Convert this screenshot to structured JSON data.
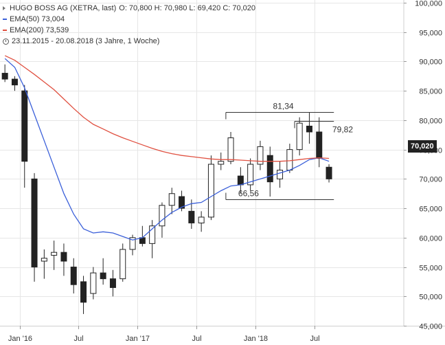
{
  "legend": {
    "title": "HUGO BOSS AG (XETRA, last)",
    "ohlc": "O: 70,800  H: 70,980  L: 69,420  C: 70,020",
    "ema50": "EMA(50)  73,004",
    "ema200": "EMA(200)  73,539",
    "period": "23.11.2015 - 20.08.2018   (3 Jahre, 1 Woche)"
  },
  "colors": {
    "ema50": "#3a5fd9",
    "ema200": "#e05040",
    "candle": "#222222",
    "grid": "#e6e6e6"
  },
  "last_price_badge": "70,020",
  "annotations": {
    "high": "81,34",
    "mid": "79,82",
    "low": "66,56"
  },
  "chart_data": {
    "type": "candlestick",
    "title": "HUGO BOSS AG (XETRA, last)",
    "x_tick_labels": [
      "Jan '16",
      "Jul",
      "Jan '17",
      "Jul",
      "Jan '18",
      "Jul"
    ],
    "y_tick_labels": [
      "100,000",
      "95,000",
      "90,000",
      "85,000",
      "80,000",
      "75,000",
      "70,000",
      "65,000",
      "60,000",
      "55,000",
      "50,000",
      "45,000"
    ],
    "ylim": [
      45,
      100
    ],
    "last_close": 70.02,
    "levels": [
      {
        "label": "81,34",
        "value": 81.34,
        "from": "2017-10",
        "to": "2018-08"
      },
      {
        "label": "79,82",
        "value": 79.82,
        "from": "2018-05",
        "to": "2018-08"
      },
      {
        "label": "66,56",
        "value": 66.56,
        "from": "2017-10",
        "to": "2018-08"
      }
    ],
    "series": [
      {
        "name": "EMA(50)",
        "last": 73.004,
        "points": [
          [
            "2015-11",
            90.5
          ],
          [
            "2015-12",
            89.0
          ],
          [
            "2016-01",
            85.5
          ],
          [
            "2016-02",
            81.0
          ],
          [
            "2016-03",
            76.5
          ],
          [
            "2016-04",
            72.0
          ],
          [
            "2016-05",
            67.5
          ],
          [
            "2016-06",
            64.0
          ],
          [
            "2016-07",
            61.5
          ],
          [
            "2016-08",
            60.8
          ],
          [
            "2016-09",
            61.0
          ],
          [
            "2016-10",
            60.8
          ],
          [
            "2016-11",
            60.2
          ],
          [
            "2016-12",
            59.6
          ],
          [
            "2017-01",
            60.0
          ],
          [
            "2017-02",
            61.5
          ],
          [
            "2017-03",
            63.0
          ],
          [
            "2017-04",
            64.3
          ],
          [
            "2017-05",
            65.2
          ],
          [
            "2017-06",
            65.8
          ],
          [
            "2017-07",
            66.0
          ],
          [
            "2017-08",
            67.0
          ],
          [
            "2017-09",
            68.0
          ],
          [
            "2017-10",
            68.8
          ],
          [
            "2017-11",
            69.0
          ],
          [
            "2017-12",
            69.5
          ],
          [
            "2018-01",
            70.0
          ],
          [
            "2018-02",
            70.5
          ],
          [
            "2018-03",
            71.0
          ],
          [
            "2018-04",
            71.5
          ],
          [
            "2018-05",
            72.3
          ],
          [
            "2018-06",
            73.3
          ],
          [
            "2018-07",
            73.6
          ],
          [
            "2018-08",
            73.0
          ]
        ]
      },
      {
        "name": "EMA(200)",
        "last": 73.539,
        "points": [
          [
            "2015-11",
            91.0
          ],
          [
            "2015-12",
            90.2
          ],
          [
            "2016-01",
            89.0
          ],
          [
            "2016-02",
            87.8
          ],
          [
            "2016-03",
            86.5
          ],
          [
            "2016-04",
            85.2
          ],
          [
            "2016-05",
            83.6
          ],
          [
            "2016-06",
            82.0
          ],
          [
            "2016-07",
            80.5
          ],
          [
            "2016-08",
            79.3
          ],
          [
            "2016-09",
            78.5
          ],
          [
            "2016-10",
            77.7
          ],
          [
            "2016-11",
            77.0
          ],
          [
            "2016-12",
            76.4
          ],
          [
            "2017-01",
            75.8
          ],
          [
            "2017-02",
            75.2
          ],
          [
            "2017-03",
            74.7
          ],
          [
            "2017-04",
            74.3
          ],
          [
            "2017-05",
            74.0
          ],
          [
            "2017-06",
            73.8
          ],
          [
            "2017-07",
            73.6
          ],
          [
            "2017-08",
            73.4
          ],
          [
            "2017-09",
            73.3
          ],
          [
            "2017-10",
            73.3
          ],
          [
            "2017-11",
            73.2
          ],
          [
            "2017-12",
            73.1
          ],
          [
            "2018-01",
            73.0
          ],
          [
            "2018-02",
            73.0
          ],
          [
            "2018-03",
            73.0
          ],
          [
            "2018-04",
            73.1
          ],
          [
            "2018-05",
            73.3
          ],
          [
            "2018-06",
            73.5
          ],
          [
            "2018-07",
            73.6
          ],
          [
            "2018-08",
            73.5
          ]
        ]
      }
    ],
    "candles": [
      [
        "2015-11",
        88.0,
        89.5,
        86.5,
        87.0
      ],
      [
        "2015-12",
        87.0,
        87.5,
        85.0,
        86.0
      ],
      [
        "2016-01",
        85.0,
        86.0,
        68.5,
        73.0
      ],
      [
        "2016-02",
        70.0,
        71.0,
        52.5,
        55.0
      ],
      [
        "2016-03",
        56.0,
        58.0,
        53.0,
        56.5
      ],
      [
        "2016-04",
        57.0,
        59.5,
        54.5,
        57.5
      ],
      [
        "2016-05",
        57.5,
        59.0,
        53.5,
        56.0
      ],
      [
        "2016-06",
        55.0,
        56.5,
        50.5,
        52.0
      ],
      [
        "2016-07",
        52.5,
        53.5,
        47.0,
        49.0
      ],
      [
        "2016-08",
        50.5,
        55.0,
        49.5,
        54.0
      ],
      [
        "2016-09",
        54.0,
        56.5,
        52.0,
        53.0
      ],
      [
        "2016-10",
        53.0,
        54.5,
        50.0,
        51.5
      ],
      [
        "2016-11",
        53.0,
        59.0,
        52.5,
        58.0
      ],
      [
        "2016-12",
        58.0,
        60.5,
        57.0,
        60.0
      ],
      [
        "2017-01",
        60.0,
        62.0,
        58.5,
        59.0
      ],
      [
        "2017-02",
        59.0,
        63.0,
        56.5,
        62.0
      ],
      [
        "2017-03",
        62.0,
        66.0,
        60.0,
        65.5
      ],
      [
        "2017-04",
        65.5,
        68.5,
        64.0,
        67.5
      ],
      [
        "2017-05",
        67.0,
        68.0,
        64.5,
        65.0
      ],
      [
        "2017-06",
        64.5,
        66.5,
        61.5,
        62.5
      ],
      [
        "2017-07",
        62.5,
        64.5,
        61.0,
        63.5
      ],
      [
        "2017-08",
        63.5,
        74.0,
        63.0,
        72.5
      ],
      [
        "2017-09",
        72.5,
        74.5,
        71.5,
        73.0
      ],
      [
        "2017-10",
        73.0,
        78.0,
        72.5,
        77.0
      ],
      [
        "2017-11",
        70.5,
        72.0,
        67.5,
        69.0
      ],
      [
        "2017-12",
        69.0,
        73.5,
        68.0,
        72.5
      ],
      [
        "2018-01",
        72.5,
        76.5,
        71.5,
        75.5
      ],
      [
        "2018-02",
        74.0,
        75.5,
        67.0,
        69.5
      ],
      [
        "2018-03",
        70.0,
        73.0,
        68.5,
        71.5
      ],
      [
        "2018-04",
        71.5,
        76.0,
        71.0,
        75.0
      ],
      [
        "2018-05",
        75.0,
        80.5,
        74.0,
        79.5
      ],
      [
        "2018-06",
        79.0,
        81.3,
        76.0,
        78.0
      ],
      [
        "2018-07",
        78.0,
        80.5,
        72.0,
        73.5
      ],
      [
        "2018-08",
        72.0,
        72.5,
        69.4,
        70.0
      ]
    ]
  }
}
